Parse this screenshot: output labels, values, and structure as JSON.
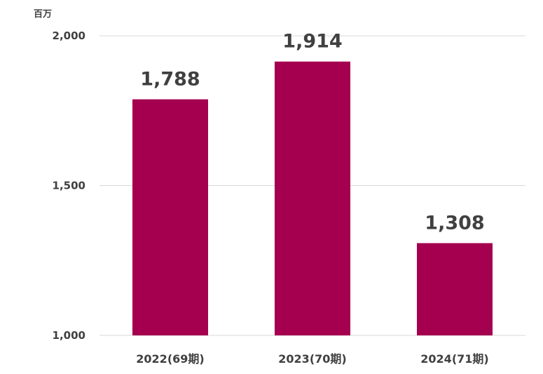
{
  "chart_data": {
    "type": "bar",
    "unit_label": "百万",
    "categories": [
      "2022(69期)",
      "2023(70期)",
      "2024(71期)"
    ],
    "values": [
      1788,
      1914,
      1308
    ],
    "data_labels": [
      "1,788",
      "1,914",
      "1,308"
    ],
    "ylim": [
      1000,
      2000
    ],
    "yticks": [
      1000,
      1500,
      2000
    ],
    "ytick_labels": [
      "1,000",
      "1,500",
      "2,000"
    ],
    "grid": true,
    "bar_color": "#a50050"
  }
}
